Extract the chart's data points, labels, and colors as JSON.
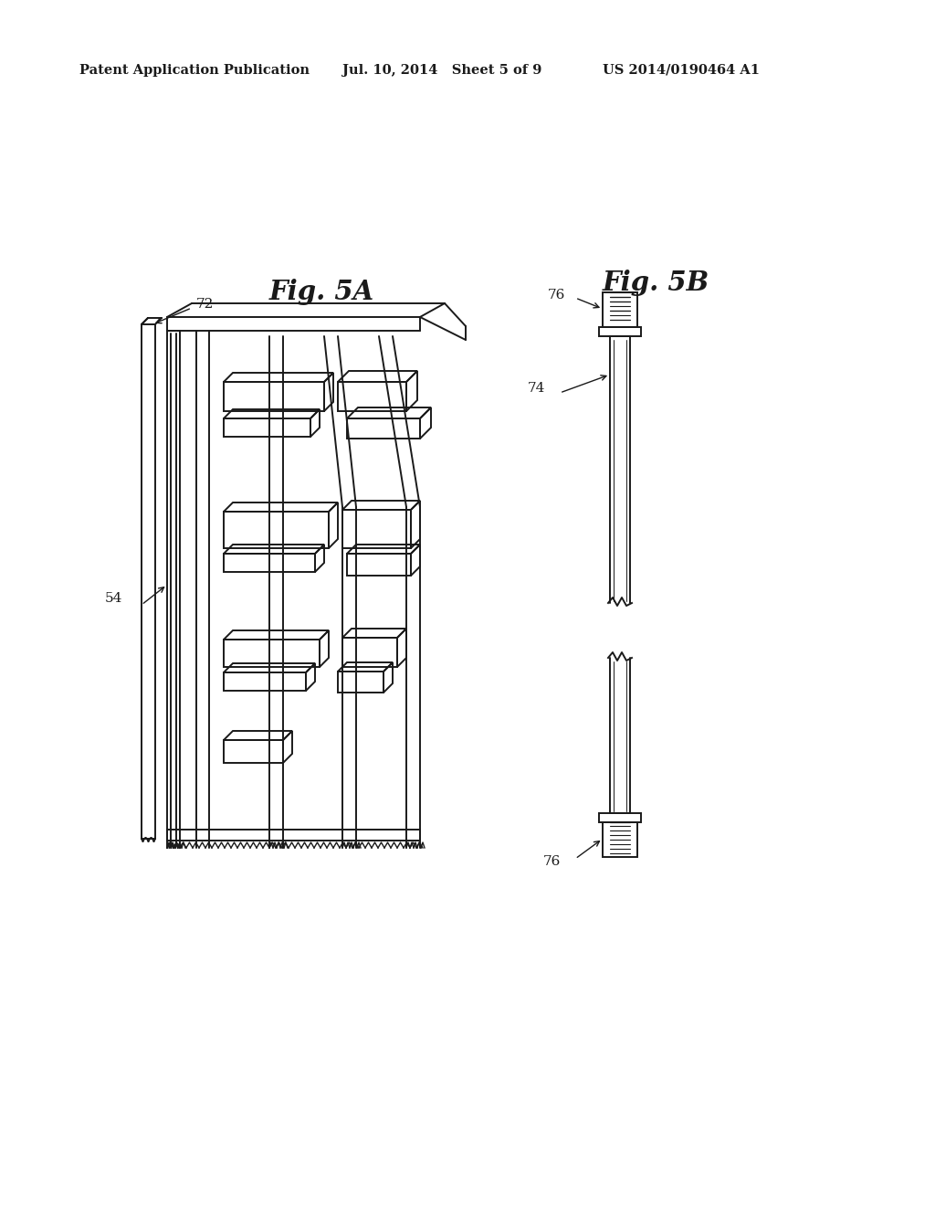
{
  "bg_color": "#ffffff",
  "line_color": "#1a1a1a",
  "header_left": "Patent Application Publication",
  "header_center": "Jul. 10, 2014   Sheet 5 of 9",
  "header_right": "US 2014/0190464 A1",
  "fig5a_title": "Fig. 5A",
  "fig5b_title": "Fig. 5B",
  "label_54": "54",
  "label_72": "72",
  "label_74": "74",
  "label_76": "76"
}
